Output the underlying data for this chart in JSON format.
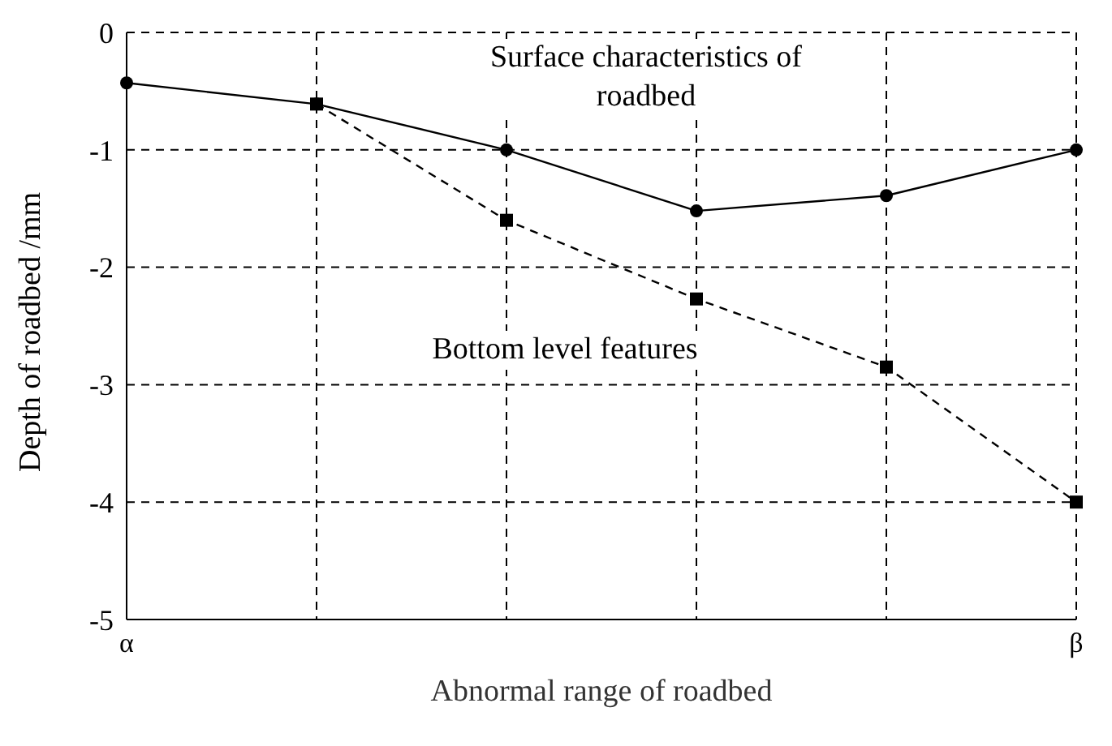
{
  "chart_data": {
    "type": "line",
    "xlabel": "Abnormal range of roadbed",
    "ylabel": "Depth of roadbed /mm",
    "categories": [
      "α",
      null,
      null,
      null,
      null,
      "β"
    ],
    "series": [
      {
        "name": "Surface characteristics of roadbed",
        "color": "#000000",
        "values": [
          -0.43,
          -0.61,
          -1.0,
          -1.52,
          -1.39,
          -1.0
        ],
        "marker": "circle",
        "line_style": "solid"
      },
      {
        "name": "Bottom level features",
        "color": "#000000",
        "values": [
          null,
          -0.61,
          -1.6,
          -2.27,
          -2.85,
          -4.0
        ],
        "marker": "square",
        "line_style": "dashed"
      }
    ],
    "ylim": [
      -5,
      0
    ],
    "yticks": [
      -5,
      -4,
      -3,
      -2,
      -1,
      0
    ],
    "grid": true,
    "legend": false
  }
}
